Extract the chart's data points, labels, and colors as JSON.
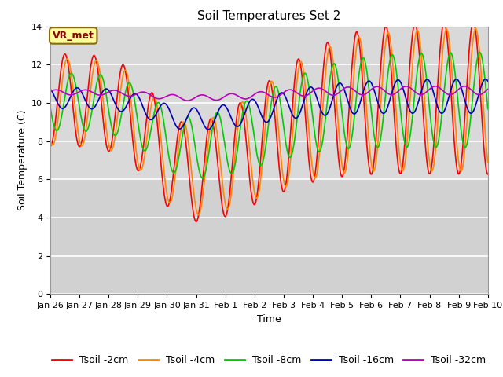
{
  "title": "Soil Temperatures Set 2",
  "xlabel": "Time",
  "ylabel": "Soil Temperature (C)",
  "annotation": "VR_met",
  "ylim": [
    0,
    14
  ],
  "yticks": [
    0,
    2,
    4,
    6,
    8,
    10,
    12,
    14
  ],
  "fig_bg_color": "#ffffff",
  "plot_bg_color": "#d9d9d9",
  "series_colors": [
    "#ff0000",
    "#ff8800",
    "#00cc00",
    "#0000bb",
    "#bb00bb"
  ],
  "series_labels": [
    "Tsoil -2cm",
    "Tsoil -4cm",
    "Tsoil -8cm",
    "Tsoil -16cm",
    "Tsoil -32cm"
  ],
  "x_tick_labels": [
    "Jan 26",
    "Jan 27",
    "Jan 28",
    "Jan 29",
    "Jan 30",
    "Jan 31",
    "Feb 1",
    "Feb 2",
    "Feb 3",
    "Feb 4",
    "Feb 5",
    "Feb 6",
    "Feb 7",
    "Feb 8",
    "Feb 9",
    "Feb 10"
  ],
  "days": 15,
  "n_points": 1440,
  "line_width": 1.2,
  "title_fontsize": 11,
  "axis_label_fontsize": 9,
  "tick_fontsize": 8,
  "legend_fontsize": 9,
  "annotation_fontsize": 9,
  "annotation_color": "#8b0000",
  "annotation_bg": "#ffff99",
  "annotation_edge": "#8b6914"
}
